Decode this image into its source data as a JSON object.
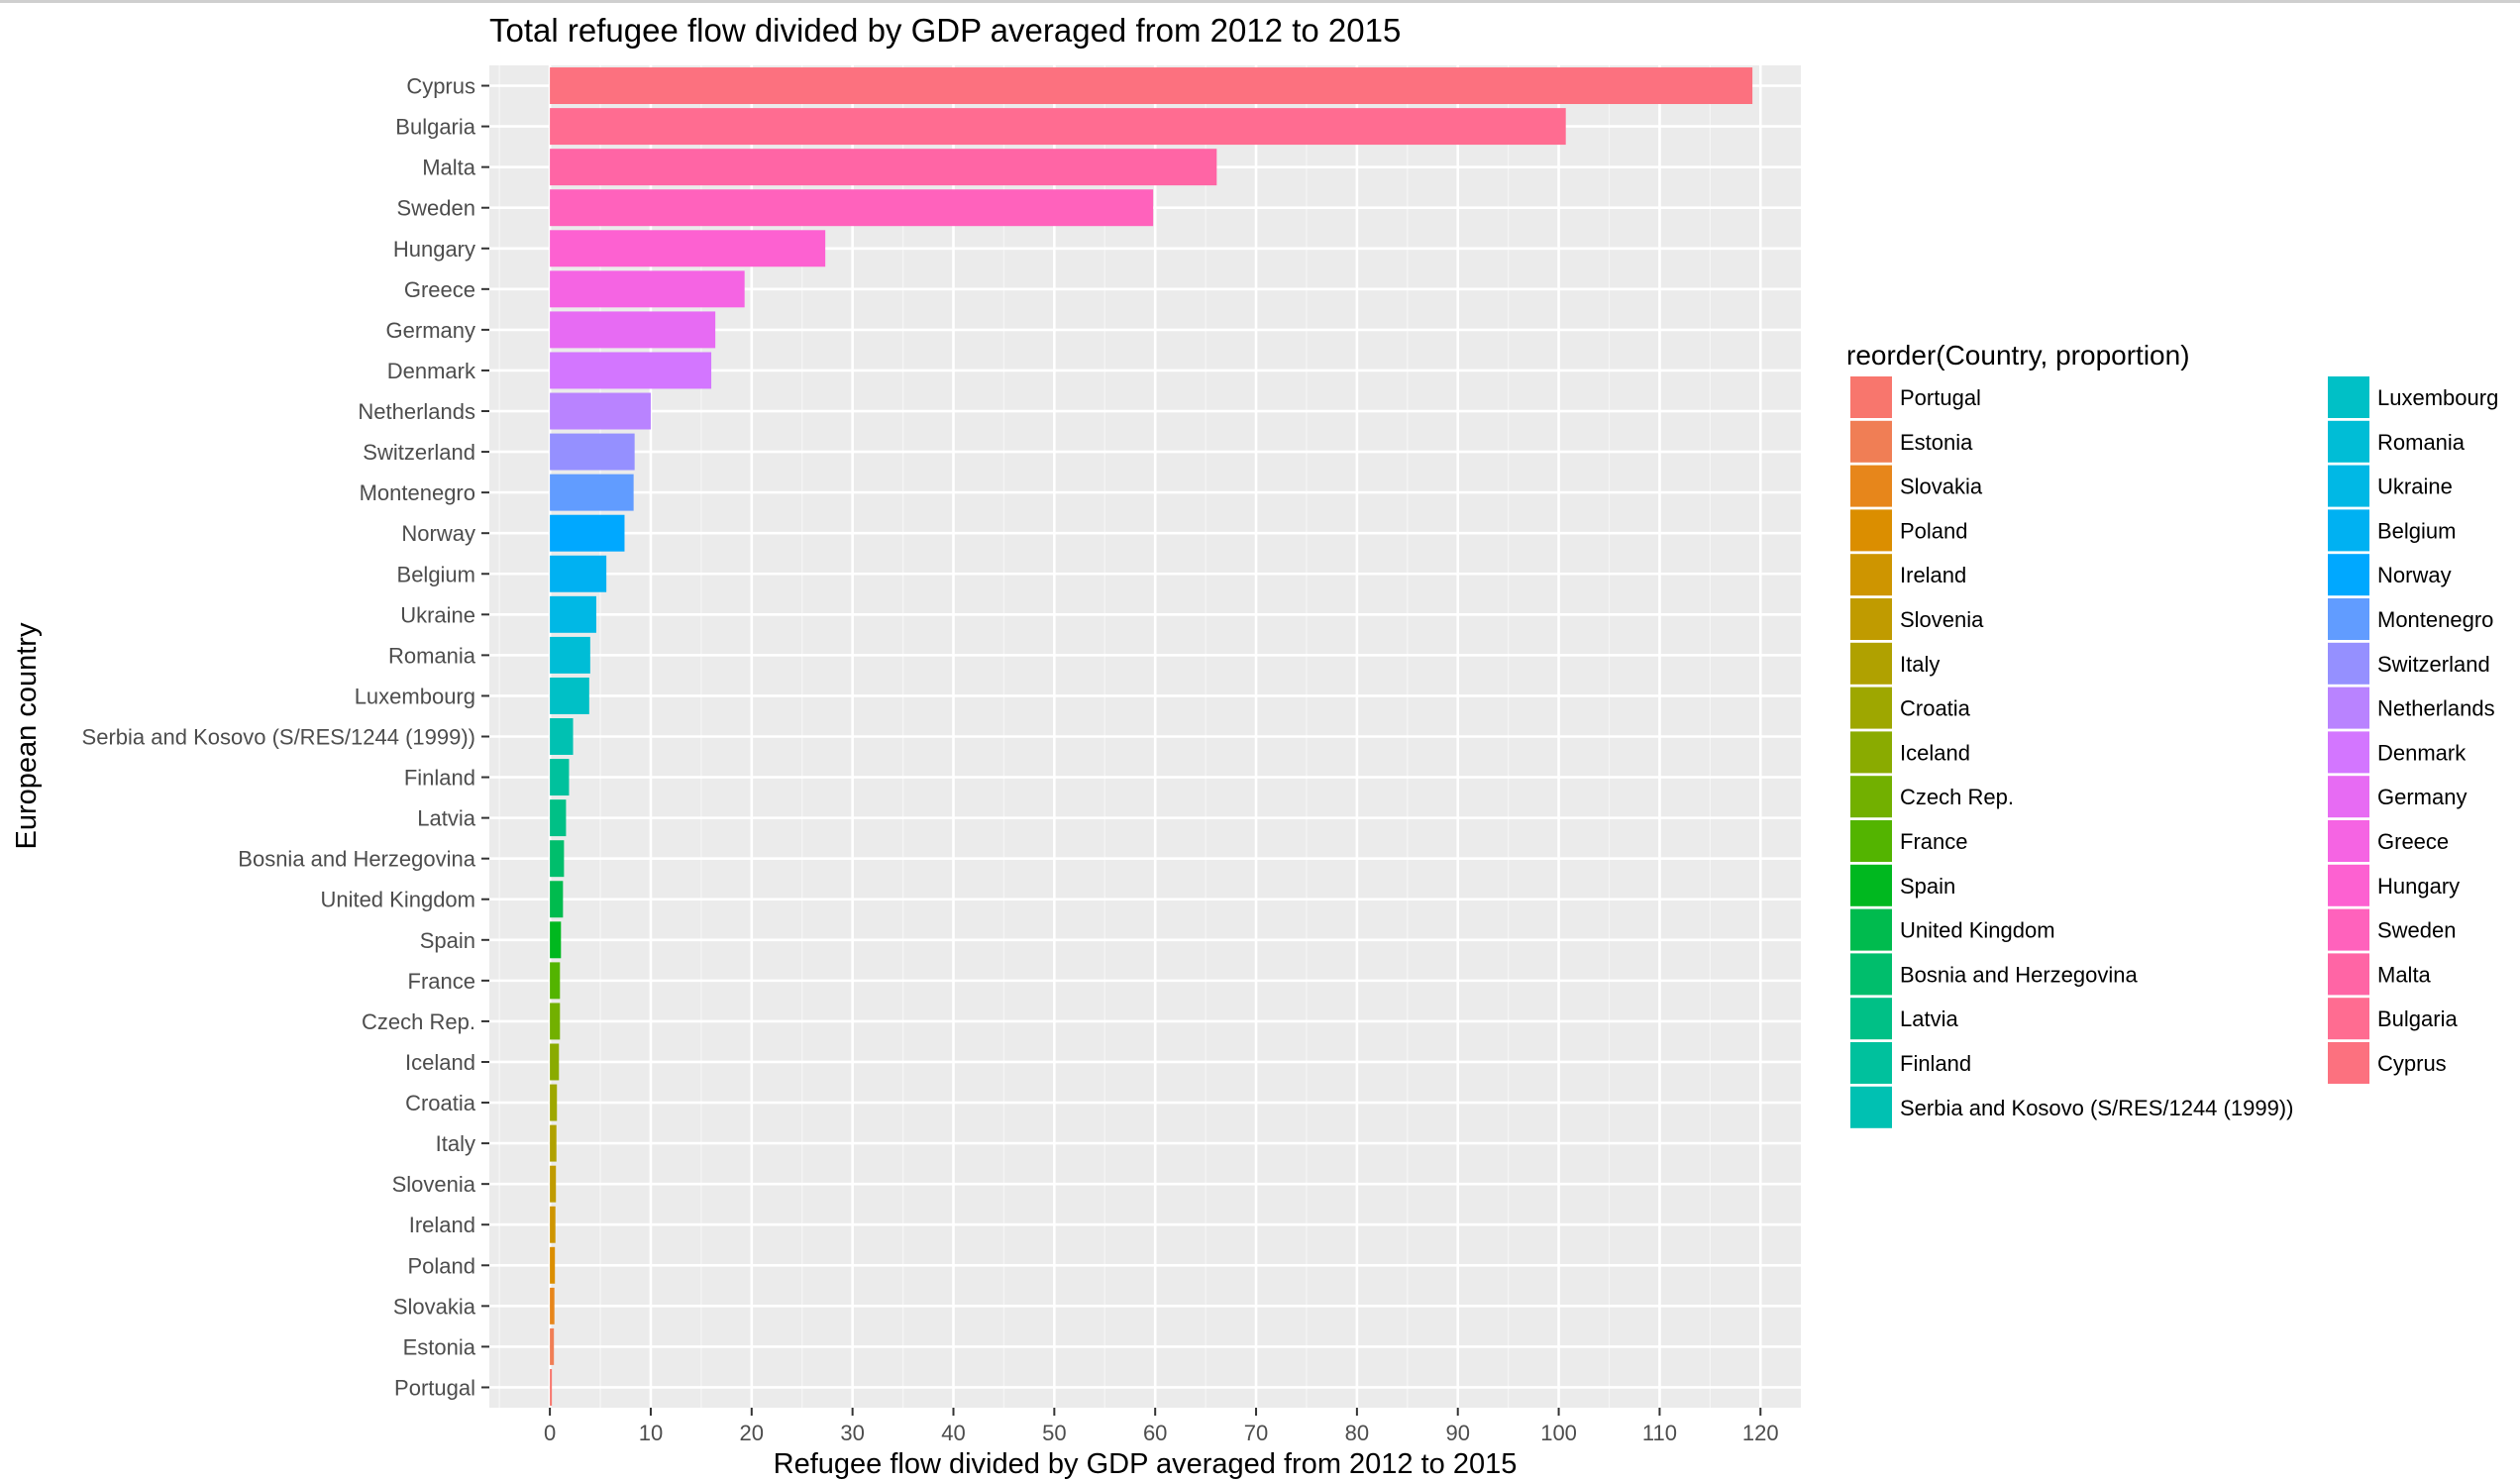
{
  "chart_data": {
    "type": "bar",
    "orientation": "horizontal",
    "title": "Total refugee flow divided by GDP averaged from 2012 to 2015",
    "xlabel": "Refugee flow divided by GDP averaged from 2012 to 2015",
    "ylabel": "European country",
    "xlim": [
      -6,
      124
    ],
    "xticks": [
      0,
      10,
      20,
      30,
      40,
      50,
      60,
      70,
      80,
      90,
      100,
      110,
      120
    ],
    "grid": true,
    "legend": {
      "title": "reorder(Country, proportion)",
      "position": "right",
      "columns": 2
    },
    "categories": [
      "Portugal",
      "Estonia",
      "Slovakia",
      "Poland",
      "Ireland",
      "Slovenia",
      "Italy",
      "Croatia",
      "Iceland",
      "Czech Rep.",
      "France",
      "Spain",
      "United Kingdom",
      "Bosnia and Herzegovina",
      "Latvia",
      "Finland",
      "Serbia and Kosovo (S/RES/1244 (1999))",
      "Luxembourg",
      "Romania",
      "Ukraine",
      "Belgium",
      "Norway",
      "Montenegro",
      "Switzerland",
      "Netherlands",
      "Denmark",
      "Germany",
      "Greece",
      "Hungary",
      "Sweden",
      "Malta",
      "Bulgaria",
      "Cyprus"
    ],
    "values": [
      0.2,
      0.4,
      0.45,
      0.5,
      0.55,
      0.6,
      0.65,
      0.7,
      0.9,
      1.0,
      1.0,
      1.1,
      1.3,
      1.4,
      1.6,
      1.9,
      2.3,
      3.9,
      4.0,
      4.6,
      5.6,
      7.4,
      8.3,
      8.4,
      10.0,
      16.0,
      16.4,
      19.3,
      27.3,
      59.8,
      66.1,
      100.7,
      119.2
    ],
    "colors": [
      "#F8766D",
      "#F07E55",
      "#E7861B",
      "#DB8E00",
      "#CE9500",
      "#C09B00",
      "#B0A100",
      "#9EA700",
      "#8AAB00",
      "#72B000",
      "#53B400",
      "#00B81F",
      "#00BB4E",
      "#00BE6C",
      "#00C086",
      "#00C19D",
      "#00C1B2",
      "#00C0C6",
      "#00BDD6",
      "#00B8E5",
      "#00B1F2",
      "#00A8FF",
      "#619CFF",
      "#9590FF",
      "#B983FF",
      "#D376FF",
      "#E76BF3",
      "#F564E3",
      "#FD61D1",
      "#FF62BC",
      "#FF65A5",
      "#FF6C91",
      "#FC717F"
    ]
  }
}
